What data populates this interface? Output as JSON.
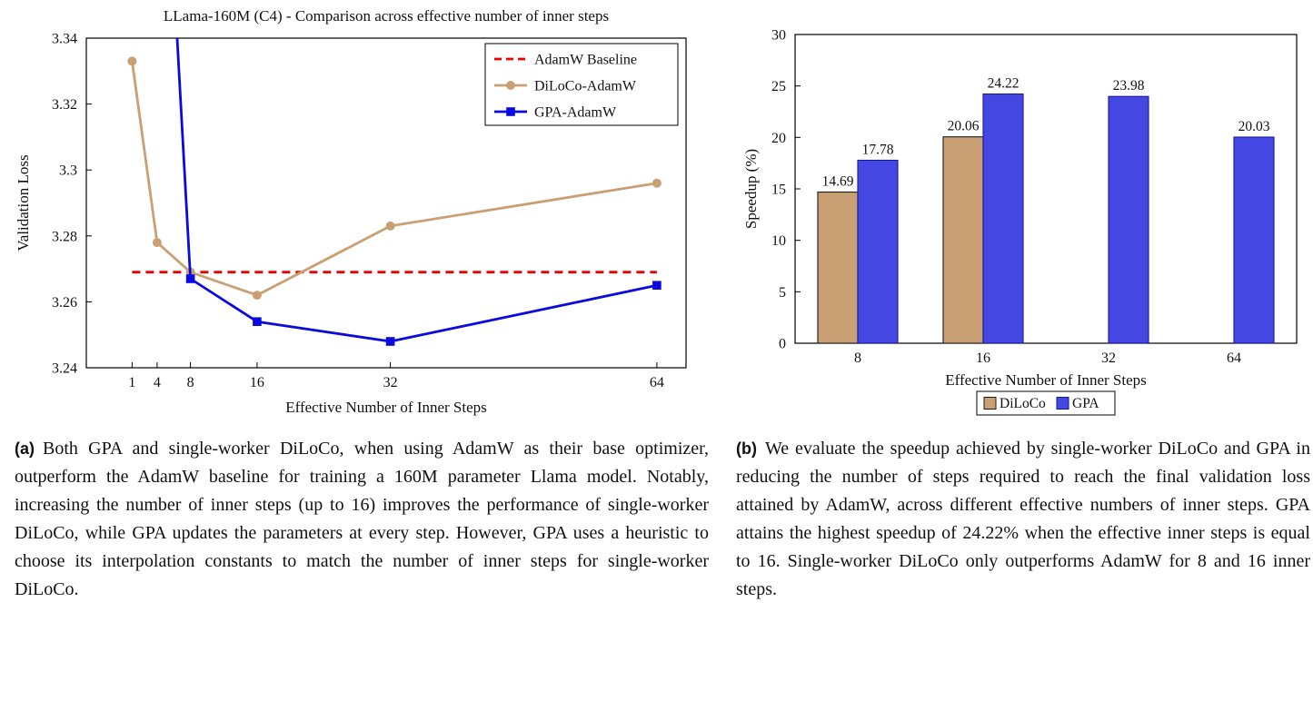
{
  "figure": {
    "panel_a": {
      "caption_label": "(a)",
      "caption_text": "Both GPA and single-worker DiLoCo, when using AdamW as their base optimizer, outperform the AdamW baseline for training a 160M parameter Llama model. Notably, increasing the number of inner steps (up to 16) improves the performance of single-worker DiLoCo, while GPA updates the parameters at every step. However, GPA uses a heuristic to choose its interpolation constants to match the number of inner steps for single-worker DiLoCo."
    },
    "panel_b": {
      "caption_label": "(b)",
      "caption_text": "We evaluate the speedup achieved by single-worker DiLoCo and GPA in reducing the number of steps required to reach the final validation loss attained by AdamW, across different effective numbers of inner steps. GPA attains the highest speedup of 24.22% when the effective inner steps is equal to 16. Single-worker DiLoCo only outperforms AdamW for 8 and 16 inner steps."
    }
  },
  "chart_data": [
    {
      "id": "line-chart",
      "type": "line",
      "title": "LLama-160M (C4) - Comparison across effective number of inner steps",
      "xlabel": "Effective Number of Inner Steps",
      "ylabel": "Validation Loss",
      "xlim": [
        -4.5,
        67.5
      ],
      "ylim": [
        3.24,
        3.34
      ],
      "xticks": [
        1,
        4,
        8,
        16,
        32,
        64
      ],
      "yticks": [
        3.24,
        3.26,
        3.28,
        3.3,
        3.32,
        3.34
      ],
      "ytick_labels": [
        "3.24",
        "3.26",
        "3.28",
        "3.3",
        "3.32",
        "3.34"
      ],
      "grid": false,
      "legend_position": "top-right-inside",
      "series": [
        {
          "name": "AdamW Baseline",
          "color": "#ee0000",
          "style": "dashed",
          "marker": "none",
          "x": [
            1,
            64
          ],
          "y": [
            3.269,
            3.269
          ]
        },
        {
          "name": "DiLoCo-AdamW",
          "color": "#c9a074",
          "style": "solid",
          "marker": "circle",
          "x": [
            1,
            4,
            8,
            16,
            32,
            64
          ],
          "y": [
            3.333,
            3.278,
            3.269,
            3.262,
            3.283,
            3.296
          ]
        },
        {
          "name": "GPA-AdamW",
          "color": "#0a0ae0",
          "style": "solid",
          "marker": "square",
          "x": [
            4,
            8,
            16,
            32,
            64
          ],
          "y": [
            3.45,
            3.267,
            3.254,
            3.248,
            3.265
          ]
        }
      ]
    },
    {
      "id": "bar-chart",
      "type": "bar",
      "title": "",
      "xlabel": "Effective Number of Inner Steps",
      "ylabel": "Speedup (%)",
      "ylim": [
        0,
        30
      ],
      "yticks": [
        0,
        5,
        10,
        15,
        20,
        25,
        30
      ],
      "categories": [
        "8",
        "16",
        "32",
        "64"
      ],
      "bar_labels": true,
      "legend_position": "below",
      "series": [
        {
          "name": "DiLoCo",
          "color": "#c9a074",
          "border": "#1a1a1a",
          "values": [
            14.69,
            20.06,
            null,
            null
          ]
        },
        {
          "name": "GPA",
          "color": "#4447e2",
          "border": "#17179c",
          "values": [
            17.78,
            24.22,
            23.98,
            20.03
          ]
        }
      ]
    }
  ]
}
